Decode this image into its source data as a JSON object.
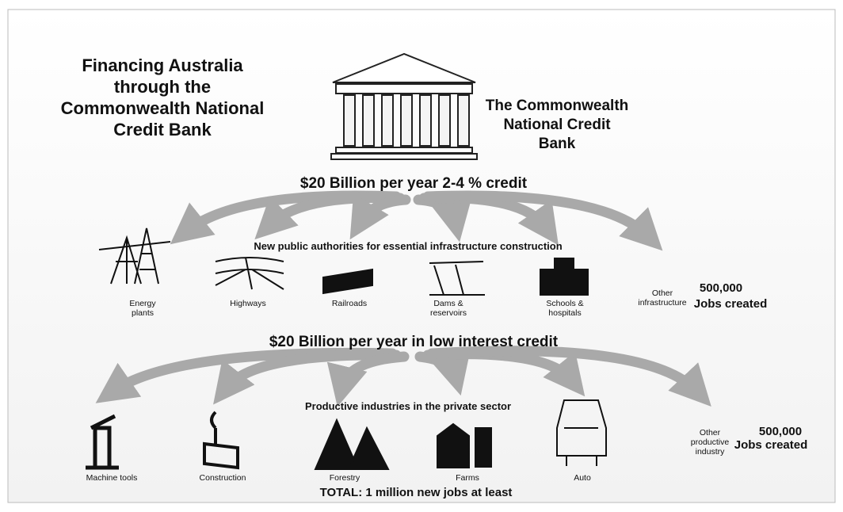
{
  "title": [
    "Financing Australia",
    "through the",
    "Commonwealth National",
    "Credit Bank"
  ],
  "bank": [
    "The Commonwealth",
    "National Credit",
    "Bank"
  ],
  "public": {
    "heading": "$20  Billion per year 2-4 % credit",
    "subheading": "New public authorities for essential infrastructure construction",
    "items": [
      [
        "Energy",
        "plants"
      ],
      [
        "Highways"
      ],
      [
        "Railroads"
      ],
      [
        "Dams &",
        "reservoirs"
      ],
      [
        "Schools &",
        "hospitals"
      ],
      [
        "Other",
        "infrastructure"
      ]
    ],
    "jobs": [
      "500,000",
      "Jobs created"
    ]
  },
  "private": {
    "heading": "$20  Billion per year in low interest credit",
    "subheading": "Productive industries in the private sector",
    "items": [
      [
        "Machine tools"
      ],
      [
        "Construction"
      ],
      [
        "Forestry"
      ],
      [
        "Farms"
      ],
      [
        "Auto"
      ],
      [
        "Other",
        "productive",
        "industry"
      ]
    ],
    "jobs": [
      "500,000",
      "Jobs created"
    ]
  },
  "total": "TOTAL: 1 million new jobs at least"
}
